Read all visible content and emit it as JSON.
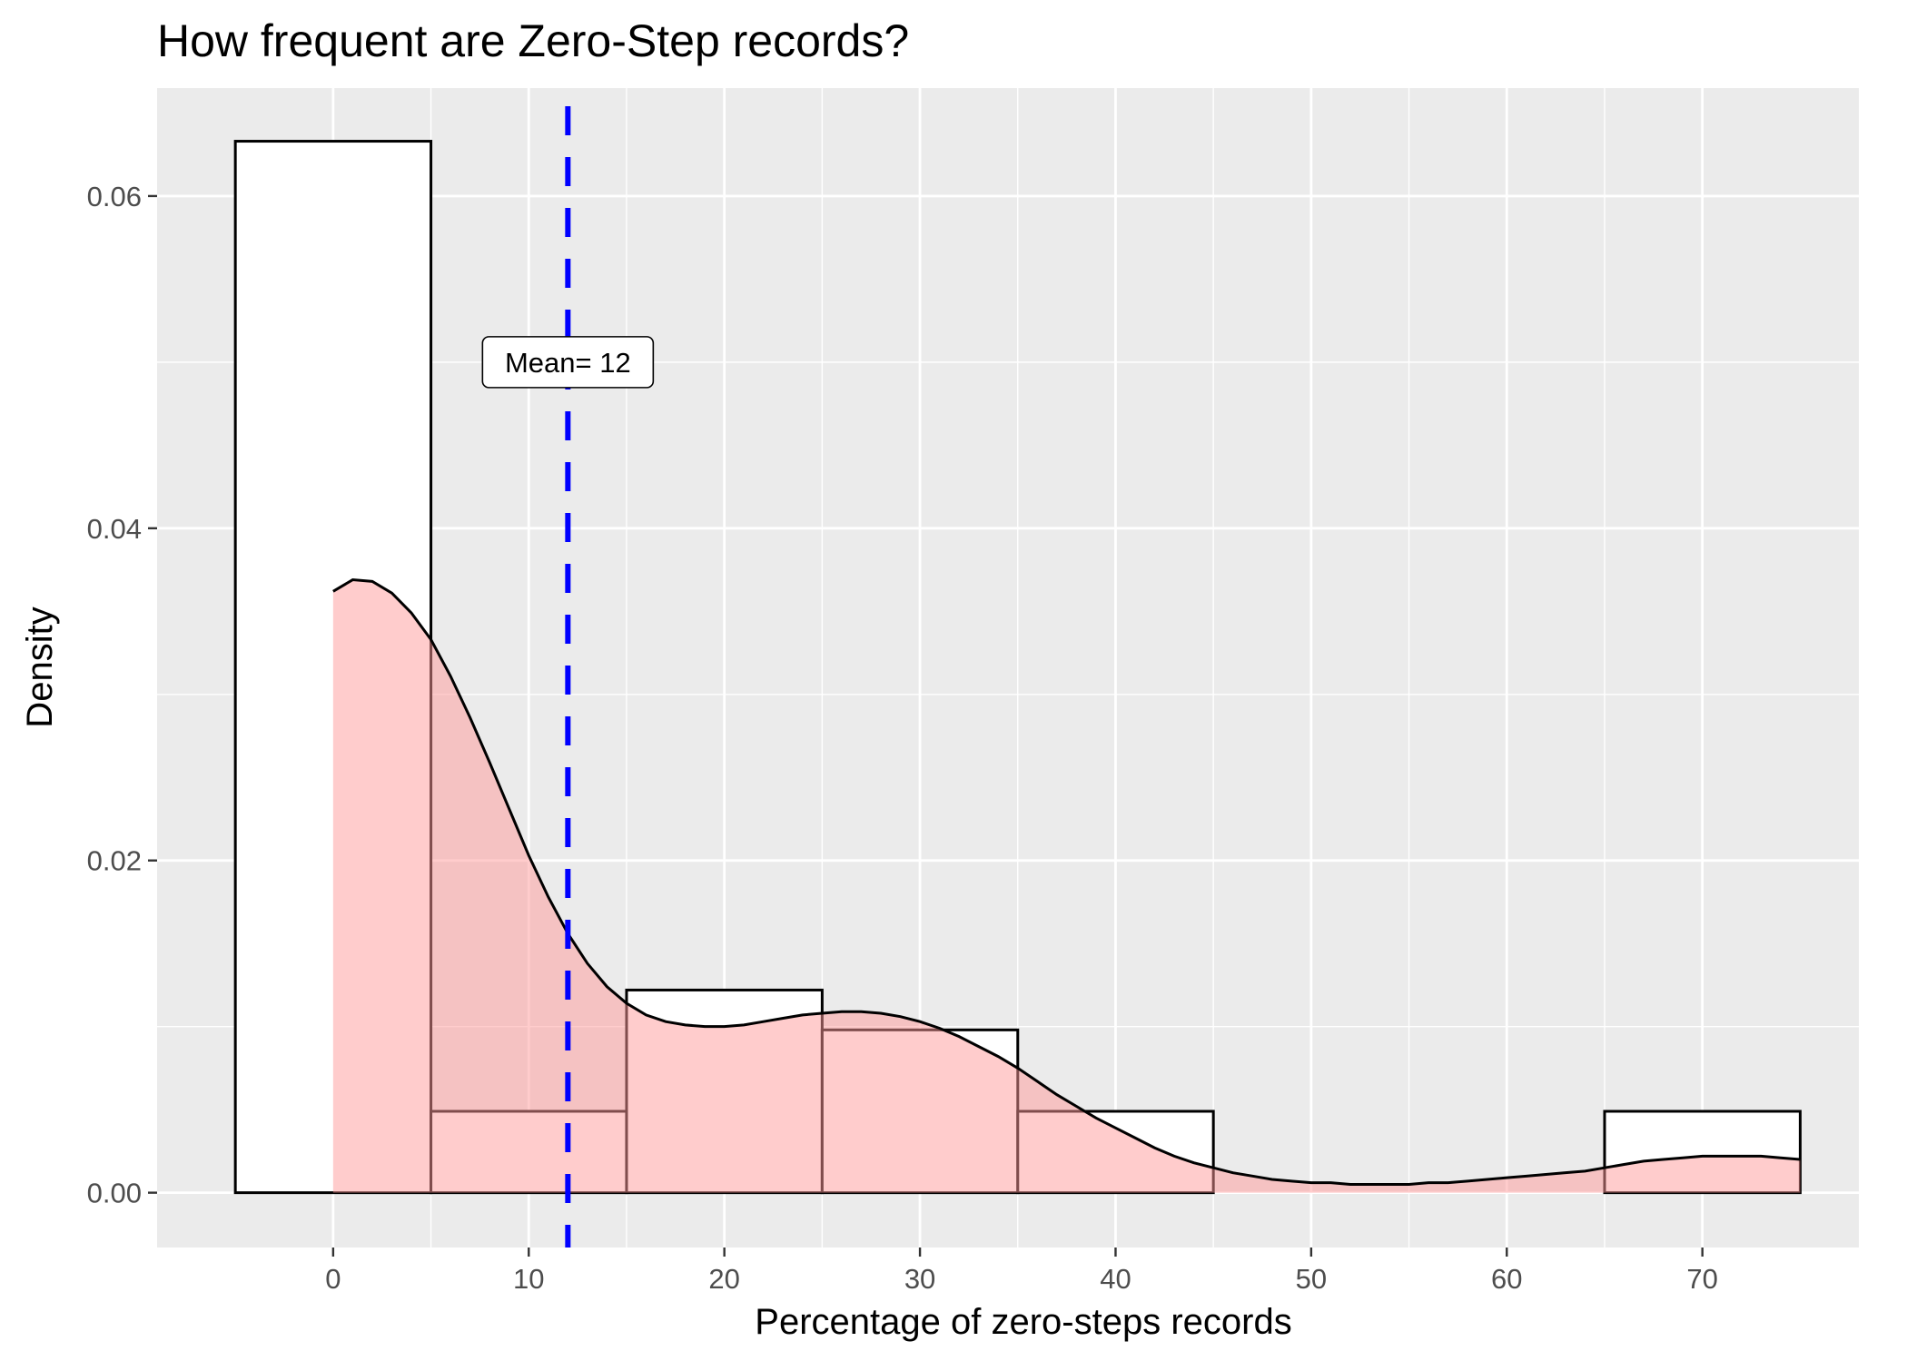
{
  "chart_data": {
    "type": "histogram",
    "title": "How frequent are Zero-Step records?",
    "xlabel": "Percentage of zero-steps records",
    "ylabel": "Density",
    "xlim": [
      -9,
      78
    ],
    "ylim": [
      -0.0033,
      0.0665
    ],
    "x_ticks": [
      0,
      10,
      20,
      30,
      40,
      50,
      60,
      70
    ],
    "x_tick_labels": [
      "0",
      "10",
      "20",
      "30",
      "40",
      "50",
      "60",
      "70"
    ],
    "y_ticks": [
      0.0,
      0.02,
      0.04,
      0.06
    ],
    "y_tick_labels": [
      "0.00",
      "0.02",
      "0.04",
      "0.06"
    ],
    "grid": true,
    "bins": [
      {
        "x0": -5,
        "x1": 5,
        "density": 0.0633
      },
      {
        "x0": 5,
        "x1": 15,
        "density": 0.0049
      },
      {
        "x0": 15,
        "x1": 25,
        "density": 0.0122
      },
      {
        "x0": 25,
        "x1": 35,
        "density": 0.0098
      },
      {
        "x0": 35,
        "x1": 45,
        "density": 0.0049
      },
      {
        "x0": 45,
        "x1": 55,
        "density": 0.0
      },
      {
        "x0": 55,
        "x1": 65,
        "density": 0.0
      },
      {
        "x0": 65,
        "x1": 75,
        "density": 0.0049
      }
    ],
    "density_curve": {
      "x": [
        0,
        1,
        2,
        3,
        4,
        5,
        6,
        7,
        8,
        9,
        10,
        11,
        12,
        13,
        14,
        15,
        16,
        17,
        18,
        19,
        20,
        21,
        22,
        23,
        24,
        25,
        26,
        27,
        28,
        29,
        30,
        31,
        32,
        33,
        34,
        35,
        36,
        37,
        38,
        39,
        40,
        41,
        42,
        43,
        44,
        45,
        46,
        47,
        48,
        49,
        50,
        51,
        52,
        53,
        54,
        55,
        56,
        57,
        58,
        59,
        60,
        61,
        62,
        63,
        64,
        65,
        66,
        67,
        68,
        69,
        70,
        71,
        72,
        73,
        74,
        75
      ],
      "y": [
        0.0362,
        0.0369,
        0.0368,
        0.0361,
        0.0349,
        0.0333,
        0.0311,
        0.0286,
        0.0259,
        0.0231,
        0.0203,
        0.0178,
        0.0156,
        0.0138,
        0.0124,
        0.0114,
        0.0107,
        0.0103,
        0.0101,
        0.01,
        0.01,
        0.0101,
        0.0103,
        0.0105,
        0.0107,
        0.0108,
        0.0109,
        0.0109,
        0.0108,
        0.0106,
        0.0103,
        0.0099,
        0.0094,
        0.0088,
        0.0082,
        0.0075,
        0.0067,
        0.0059,
        0.0052,
        0.0045,
        0.0039,
        0.0033,
        0.0027,
        0.0022,
        0.0018,
        0.0015,
        0.0012,
        0.001,
        0.0008,
        0.0007,
        0.0006,
        0.0006,
        0.0005,
        0.0005,
        0.0005,
        0.0005,
        0.0006,
        0.0006,
        0.0007,
        0.0008,
        0.0009,
        0.001,
        0.0011,
        0.0012,
        0.0013,
        0.0015,
        0.0017,
        0.0019,
        0.002,
        0.0021,
        0.0022,
        0.0022,
        0.0022,
        0.0022,
        0.0021,
        0.002
      ]
    },
    "mean_line": {
      "x": 12,
      "label": "Mean= 12",
      "label_y": 0.05,
      "color": "#0000ff",
      "style": "dashed"
    },
    "colors": {
      "panel_background": "#ebebeb",
      "grid": "#ffffff",
      "bar_fill": "#ffffff",
      "bar_outline": "#000000",
      "density_fill": "#ff9999",
      "density_line": "#000000"
    }
  }
}
